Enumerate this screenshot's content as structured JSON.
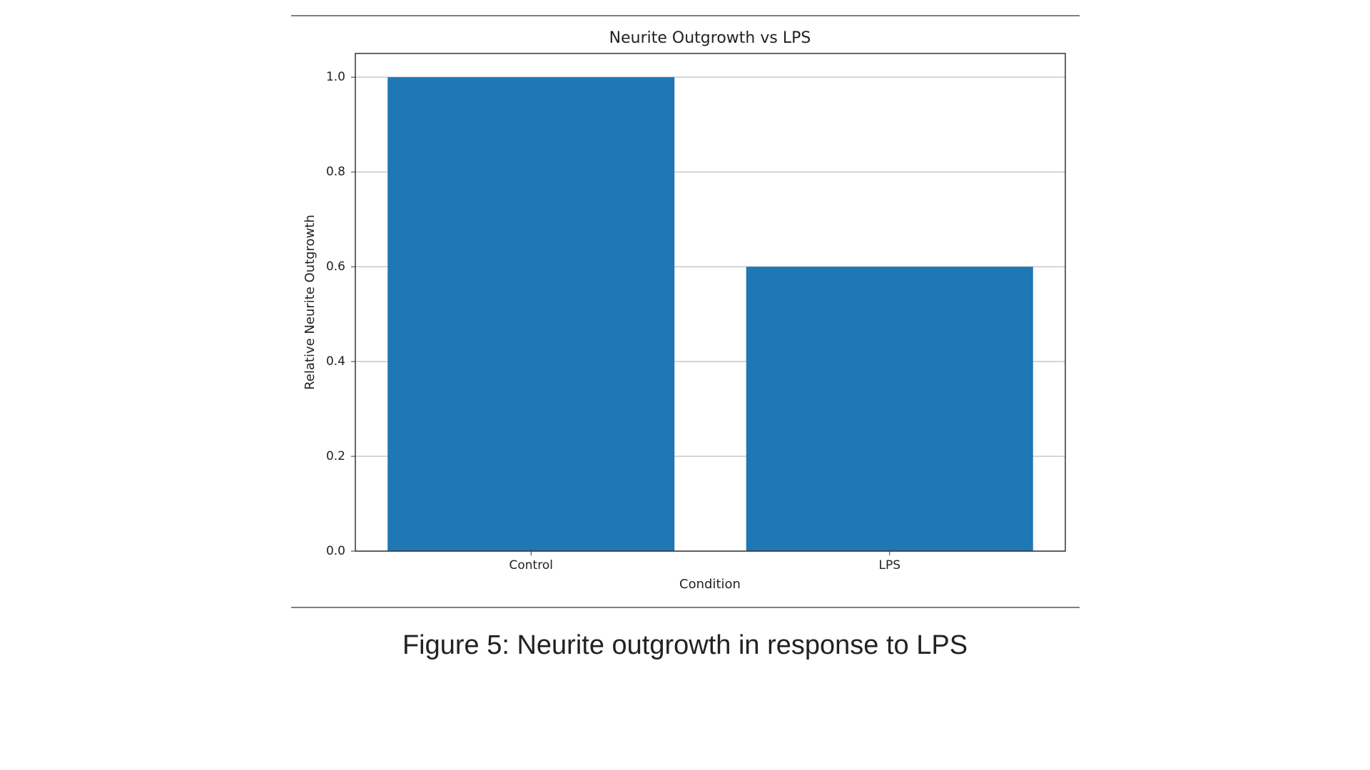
{
  "chart_data": {
    "type": "bar",
    "title": "Neurite Outgrowth vs LPS",
    "x_label": "Condition",
    "y_label": "Relative Neurite Outgrowth",
    "categories": [
      "Control",
      "LPS"
    ],
    "values": [
      1.0,
      0.6
    ],
    "color": "#1f77b4",
    "ylim": [
      0,
      1.05
    ],
    "yticks": [
      {
        "value": 0,
        "label": "0.0"
      },
      0.2,
      0.4,
      0.6,
      0.8,
      {
        "value": 1,
        "label": "1.0"
      }
    ],
    "grid": true
  },
  "caption": "Figure 5: Neurite outgrowth in response to LPS"
}
